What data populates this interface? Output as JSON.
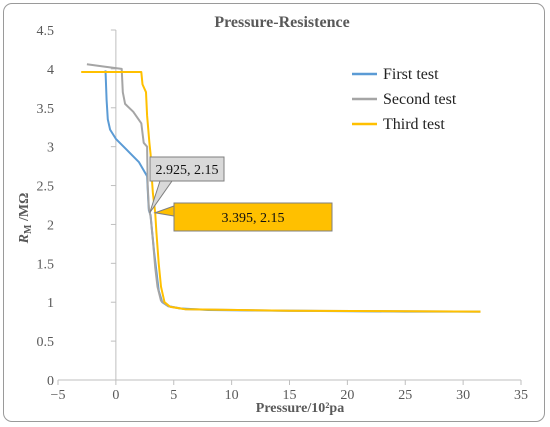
{
  "chart_data": {
    "type": "line",
    "title": "Pressure-Resistence",
    "xlabel": "Pressure/10²pa",
    "ylabel_main": "R",
    "ylabel_sub": "M",
    "ylabel_rest": " /MΩ",
    "xlim": [
      -5,
      35
    ],
    "ylim": [
      0,
      4.5
    ],
    "xticks": [
      -5,
      0,
      5,
      10,
      15,
      20,
      25,
      30,
      35
    ],
    "yticks": [
      0,
      0.5,
      1,
      1.5,
      2,
      2.5,
      3,
      3.5,
      4,
      4.5
    ],
    "xtick_labels": [
      "−5",
      "0",
      "5",
      "10",
      "15",
      "20",
      "25",
      "30",
      "35"
    ],
    "ytick_labels": [
      "0",
      "0.5",
      "1",
      "1.5",
      "2",
      "2.5",
      "3",
      "3.5",
      "4",
      "4.5"
    ],
    "grid": false,
    "legend_position": "right",
    "series": [
      {
        "name": "First test",
        "color": "#5b9bd5",
        "points": [
          [
            -0.9,
            3.98
          ],
          [
            -0.8,
            3.6
          ],
          [
            -0.7,
            3.35
          ],
          [
            -0.5,
            3.22
          ],
          [
            0,
            3.1
          ],
          [
            1,
            2.95
          ],
          [
            2,
            2.8
          ],
          [
            2.7,
            2.62
          ],
          [
            2.8,
            2.3
          ],
          [
            2.85,
            2.18
          ],
          [
            3,
            2.12
          ],
          [
            3.1,
            1.95
          ],
          [
            3.3,
            1.65
          ],
          [
            3.5,
            1.4
          ],
          [
            3.7,
            1.15
          ],
          [
            4.0,
            1.0
          ],
          [
            4.5,
            0.95
          ],
          [
            5.5,
            0.92
          ],
          [
            8,
            0.9
          ],
          [
            15,
            0.89
          ],
          [
            25,
            0.88
          ],
          [
            31.5,
            0.88
          ]
        ]
      },
      {
        "name": "Second test",
        "color": "#a5a5a5",
        "points": [
          [
            -2.5,
            4.06
          ],
          [
            -1.0,
            4.03
          ],
          [
            0.5,
            4.0
          ],
          [
            0.6,
            3.7
          ],
          [
            0.8,
            3.55
          ],
          [
            1.5,
            3.45
          ],
          [
            2.2,
            3.3
          ],
          [
            2.4,
            3.05
          ],
          [
            2.7,
            3.0
          ],
          [
            2.75,
            2.5
          ],
          [
            2.85,
            2.2
          ],
          [
            2.93,
            2.15
          ],
          [
            3.0,
            2.1
          ],
          [
            3.2,
            1.8
          ],
          [
            3.4,
            1.45
          ],
          [
            3.6,
            1.2
          ],
          [
            3.9,
            1.02
          ],
          [
            4.5,
            0.95
          ],
          [
            6,
            0.91
          ],
          [
            15,
            0.89
          ],
          [
            31.5,
            0.88
          ]
        ]
      },
      {
        "name": "Third test",
        "color": "#ffc000",
        "points": [
          [
            -3.0,
            3.96
          ],
          [
            2.2,
            3.96
          ],
          [
            2.3,
            3.8
          ],
          [
            2.6,
            3.7
          ],
          [
            2.7,
            3.4
          ],
          [
            2.9,
            3.05
          ],
          [
            3.0,
            2.9
          ],
          [
            3.1,
            2.6
          ],
          [
            3.2,
            2.4
          ],
          [
            3.395,
            2.15
          ],
          [
            3.5,
            1.9
          ],
          [
            3.7,
            1.5
          ],
          [
            3.9,
            1.2
          ],
          [
            4.2,
            1.0
          ],
          [
            4.7,
            0.94
          ],
          [
            6,
            0.91
          ],
          [
            15,
            0.89
          ],
          [
            31.5,
            0.88
          ]
        ]
      }
    ],
    "annotations": [
      {
        "text": "2.925, 2.15",
        "x": 2.925,
        "y": 2.15,
        "color": "#d9d9d9"
      },
      {
        "text": "3.395,  2.15",
        "x": 3.395,
        "y": 2.15,
        "color": "#ffc000"
      }
    ]
  }
}
